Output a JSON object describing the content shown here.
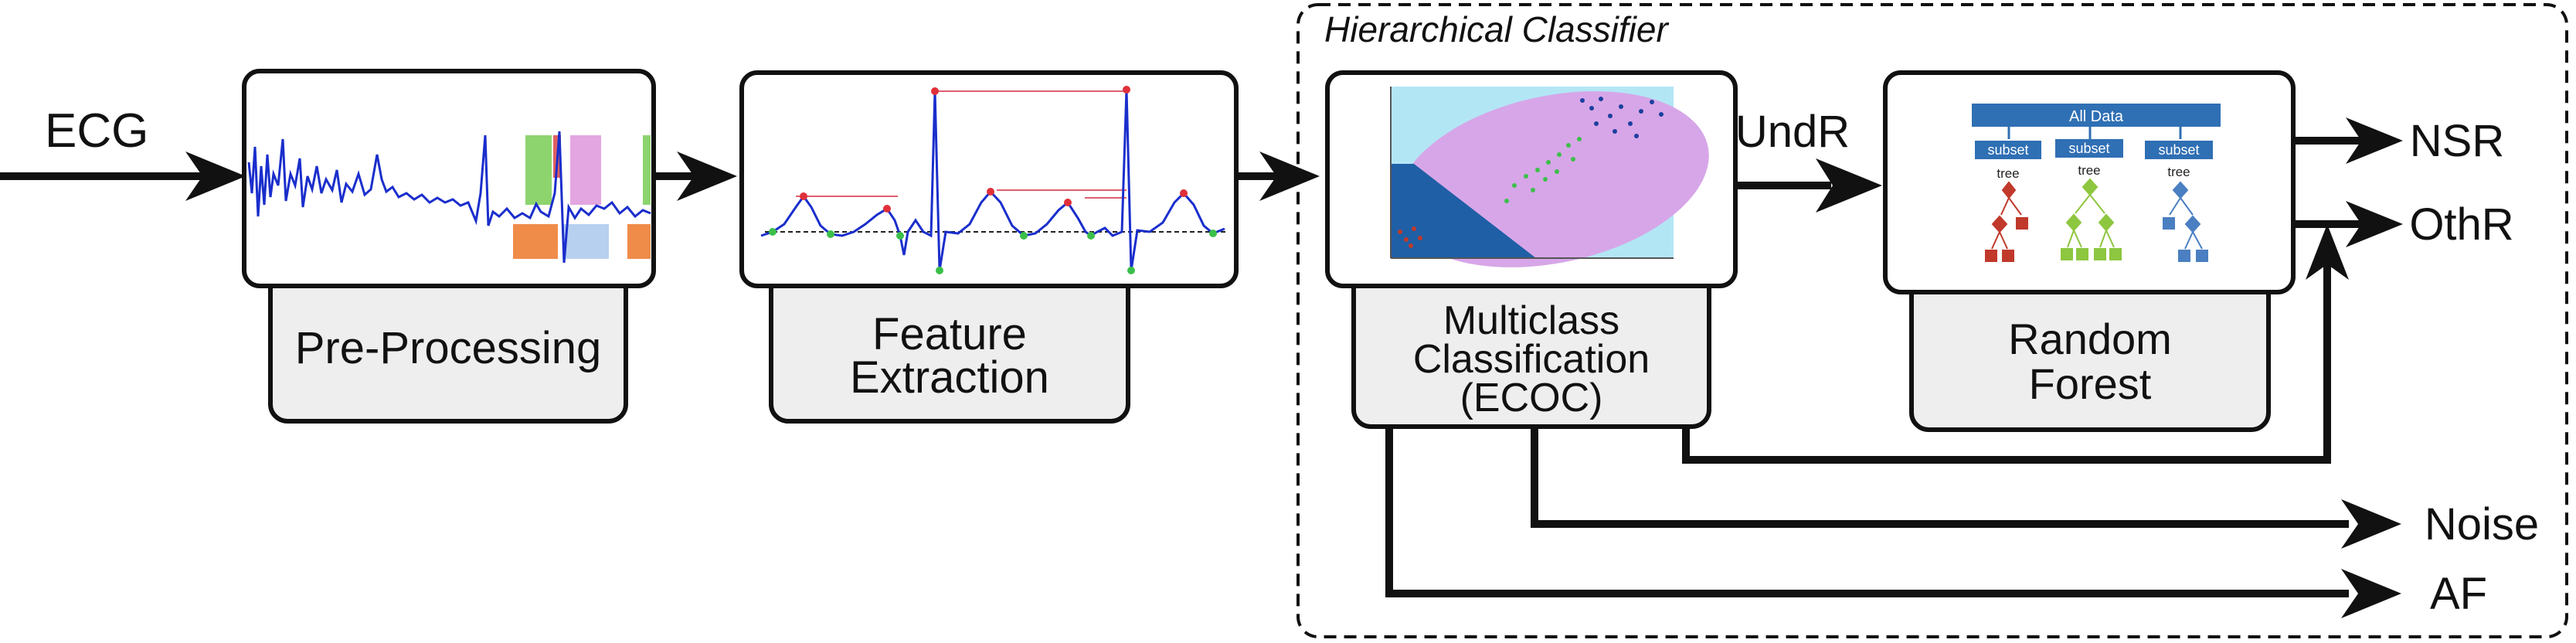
{
  "diagram": {
    "input_label": "ECG",
    "group_title": "Hierarchical Classifier",
    "blocks": {
      "preprocessing": {
        "label": "Pre-Processing"
      },
      "feature_extraction": {
        "label_line1": "Feature",
        "label_line2": "Extraction"
      },
      "multiclass": {
        "label_line1": "Multiclass",
        "label_line2": "Classification",
        "label_line3": "(ECOC)"
      },
      "random_forest": {
        "label_line1": "Random",
        "label_line2": "Forest"
      }
    },
    "edge_labels": {
      "undr": "UndR"
    },
    "outputs": {
      "nsr": "NSR",
      "othr": "OthR",
      "noise": "Noise",
      "af": "AF"
    },
    "forest_thumbnail": {
      "root": "All Data",
      "subset": "subset",
      "tree": "tree"
    },
    "colors": {
      "frame": "#111111",
      "label_box_fill": "#eeeeee",
      "signal": "#1a2ecc",
      "scatter_bg": "#b3e6f5",
      "scatter_ellipse": "#d7a6e8",
      "scatter_dark": "#1f5fa6",
      "tree_red": "#c0392b",
      "tree_green": "#8dc63f",
      "tree_blue": "#4a7fc1",
      "forest_header": "#2f6fb4"
    }
  }
}
